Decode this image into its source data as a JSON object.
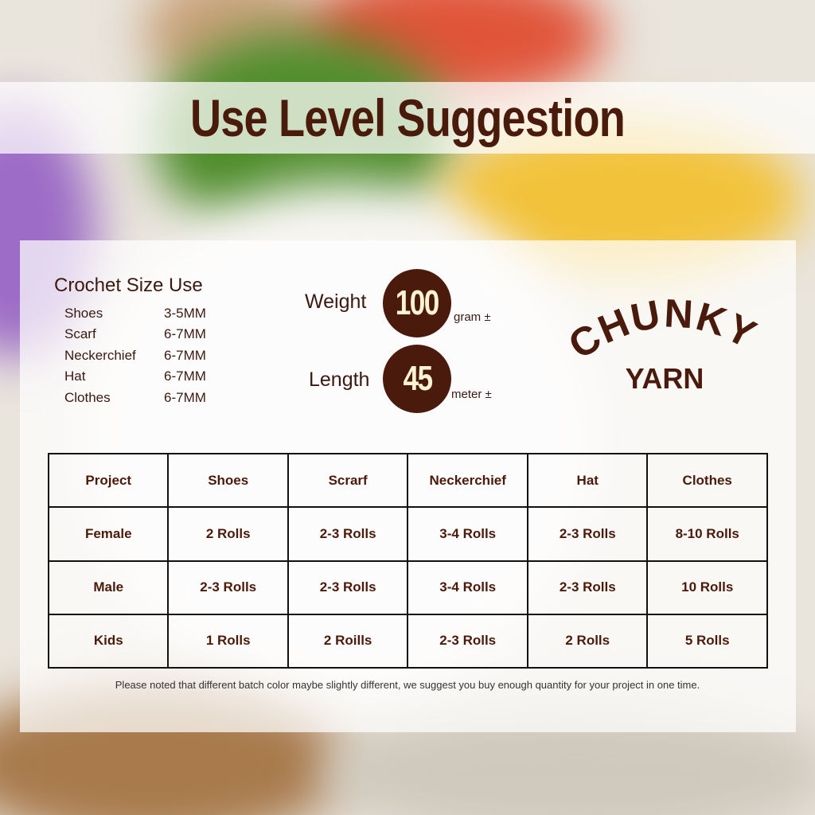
{
  "title": "Use Level Suggestion",
  "colors": {
    "brand_brown": "#4a1a0c",
    "circle_text": "#fff3d2"
  },
  "crochet_size": {
    "heading": "Crochet Size Use",
    "rows": [
      {
        "item": "Shoes",
        "size": "3-5MM"
      },
      {
        "item": "Scarf",
        "size": "6-7MM"
      },
      {
        "item": "Neckerchief",
        "size": "6-7MM"
      },
      {
        "item": "Hat",
        "size": "6-7MM"
      },
      {
        "item": "Clothes",
        "size": "6-7MM"
      }
    ]
  },
  "specs": {
    "weight": {
      "label": "Weight",
      "value": "100",
      "unit": "gram ±"
    },
    "length": {
      "label": "Length",
      "value": "45",
      "unit": "meter ±"
    }
  },
  "logo": {
    "line1": "CHUNKY",
    "line2": "YARN"
  },
  "table": {
    "header": [
      "Project",
      "Shoes",
      "Scrarf",
      "Neckerchief",
      "Hat",
      "Clothes"
    ],
    "rows": [
      [
        "Female",
        "2 Rolls",
        "2-3 Rolls",
        "3-4 Rolls",
        "2-3 Rolls",
        "8-10 Rolls"
      ],
      [
        "Male",
        "2-3 Rolls",
        "2-3 Rolls",
        "3-4 Rolls",
        "2-3 Rolls",
        "10 Rolls"
      ],
      [
        "Kids",
        "1 Rolls",
        "2 Roills",
        "2-3 Rolls",
        "2 Rolls",
        "5 Rolls"
      ]
    ]
  },
  "note": "Please noted that different batch color maybe slightly different, we suggest you buy enough quantity for your project in one time."
}
